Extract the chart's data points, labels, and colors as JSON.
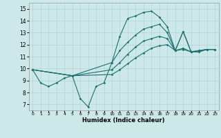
{
  "xlabel": "Humidex (Indice chaleur)",
  "xlim": [
    -0.5,
    23.5
  ],
  "ylim": [
    6.5,
    15.5
  ],
  "xticks": [
    0,
    1,
    2,
    3,
    4,
    5,
    6,
    7,
    8,
    9,
    10,
    11,
    12,
    13,
    14,
    15,
    16,
    17,
    18,
    19,
    20,
    21,
    22,
    23
  ],
  "yticks": [
    7,
    8,
    9,
    10,
    11,
    12,
    13,
    14,
    15
  ],
  "bg_color": "#cce8e8",
  "grid_color": "#b0d4d4",
  "line_color": "#1a7070",
  "curves": [
    {
      "x": [
        0,
        1,
        2,
        3,
        4,
        5,
        6,
        7,
        8,
        9,
        10,
        11,
        12,
        13,
        14,
        15,
        16,
        17,
        18,
        19,
        20,
        21,
        22,
        23
      ],
      "y": [
        9.9,
        8.8,
        8.5,
        8.8,
        9.2,
        9.4,
        7.5,
        6.8,
        8.5,
        8.8,
        10.5,
        12.7,
        14.2,
        14.4,
        14.7,
        14.8,
        14.3,
        13.5,
        11.5,
        13.1,
        11.4,
        11.4,
        11.6,
        11.6
      ]
    },
    {
      "x": [
        0,
        5,
        10,
        11,
        12,
        13,
        14,
        15,
        16,
        17,
        18,
        19,
        20,
        21,
        22,
        23
      ],
      "y": [
        9.9,
        9.4,
        10.5,
        11.5,
        12.2,
        12.8,
        13.3,
        13.5,
        13.7,
        13.0,
        11.5,
        13.1,
        11.4,
        11.4,
        11.6,
        11.6
      ]
    },
    {
      "x": [
        0,
        5,
        10,
        11,
        12,
        13,
        14,
        15,
        16,
        17,
        18,
        19,
        20,
        21,
        22,
        23
      ],
      "y": [
        9.9,
        9.4,
        9.9,
        10.5,
        11.2,
        11.8,
        12.3,
        12.5,
        12.7,
        12.5,
        11.5,
        11.7,
        11.4,
        11.5,
        11.6,
        11.6
      ]
    },
    {
      "x": [
        0,
        5,
        10,
        11,
        12,
        13,
        14,
        15,
        16,
        17,
        18,
        19,
        20,
        21,
        22,
        23
      ],
      "y": [
        9.9,
        9.4,
        9.5,
        9.9,
        10.4,
        10.9,
        11.3,
        11.7,
        11.9,
        12.0,
        11.5,
        11.6,
        11.4,
        11.5,
        11.6,
        11.6
      ]
    }
  ]
}
